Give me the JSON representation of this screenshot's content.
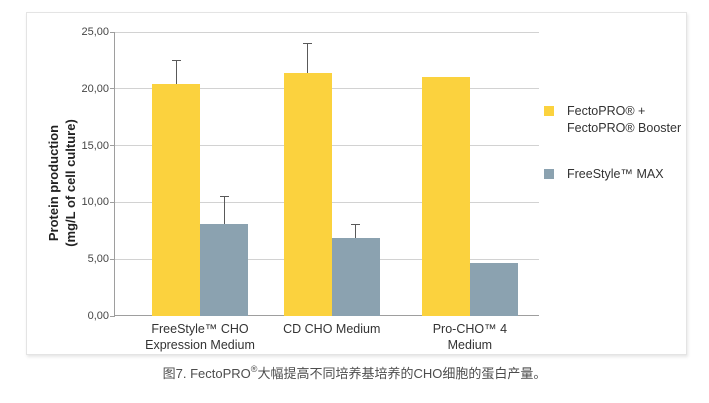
{
  "chart_data": {
    "type": "bar",
    "title": "",
    "ylabel": "Protein production\n(mg/L of cell culture)",
    "xlabel": "",
    "categories": [
      "FreeStyle™ CHO\nExpression Medium",
      "CD CHO Medium",
      "Pro-CHO™ 4\nMedium"
    ],
    "series": [
      {
        "name": "FectoPRO® + FectoPRO® Booster",
        "legend_label": "FectoPRO® +\nFectoPRO® Booster",
        "color": "#FBD23E",
        "values": [
          20.4,
          21.4,
          21.0
        ],
        "errors_plus": [
          2.1,
          2.6,
          0
        ]
      },
      {
        "name": "FreeStyle™ MAX",
        "legend_label": "FreeStyle™ MAX",
        "color": "#8BA2B0",
        "values": [
          8.1,
          6.9,
          4.7
        ],
        "errors_plus": [
          2.5,
          1.2,
          0
        ]
      }
    ],
    "ylim": [
      0,
      25
    ],
    "yticks": [
      0,
      5,
      10,
      15,
      20,
      25
    ],
    "ytick_labels": [
      "0,00",
      "5,00",
      "10,00",
      "15,00",
      "20,00",
      "25,00"
    ],
    "grid": true,
    "legend_position": "right",
    "error_bar_color": "#595959"
  },
  "caption": {
    "prefix": "图7. FectoPRO",
    "registered": "®",
    "suffix": "大幅提高不同培养基培养的CHO细胞的蛋白产量。"
  }
}
